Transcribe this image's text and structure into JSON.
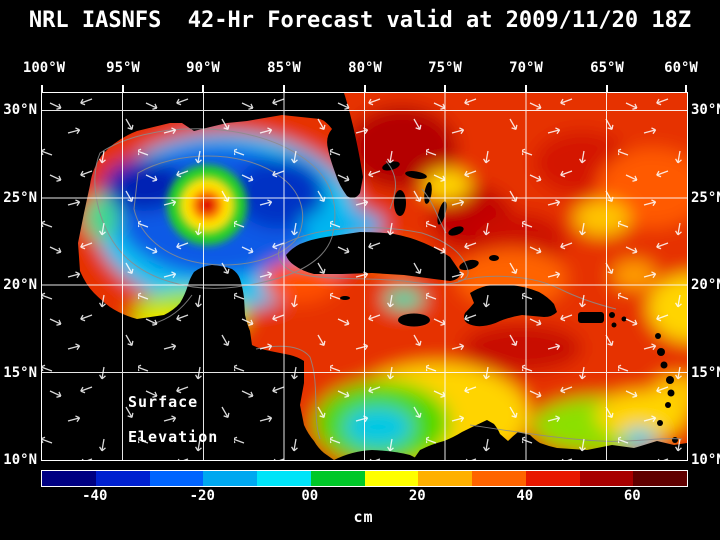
{
  "title": "NRL IASNFS  42-Hr Forecast valid at 2009/11/20 18Z",
  "map": {
    "x_ticks_top": [
      "100°W",
      "95°W",
      "90°W",
      "85°W",
      "80°W",
      "75°W",
      "70°W",
      "65°W",
      "60°W"
    ],
    "y_ticks_left": [
      "30°N",
      "25°N",
      "20°N",
      "15°N",
      "10°N"
    ],
    "y_ticks_right": [
      "30°N",
      "25°N",
      "20°N",
      "15°N",
      "10°N"
    ],
    "overlay_label": {
      "line1": "Surface",
      "line2": "Elevation"
    }
  },
  "colorbar": {
    "unit_label": "cm",
    "tick_labels": [
      "-40",
      "-20",
      "00",
      "20",
      "40",
      "60"
    ],
    "segment_colors": [
      "#000082",
      "#0020d0",
      "#0064ff",
      "#00a8f0",
      "#00e4f8",
      "#00c828",
      "#ffff00",
      "#ffb000",
      "#ff6400",
      "#e81800",
      "#a80000",
      "#600000"
    ]
  },
  "chart_data": {
    "type": "heatmap",
    "title": "NRL IASNFS 42-Hr Forecast valid at 2009/11/20 18Z",
    "model": "NRL IASNFS",
    "forecast_hour": "42-Hr",
    "valid_time": "2009/11/20 18Z",
    "variable": "Surface Elevation",
    "units": "cm",
    "x_axis": {
      "label": "longitude",
      "ticks": [
        "100°W",
        "95°W",
        "90°W",
        "85°W",
        "80°W",
        "75°W",
        "70°W",
        "65°W",
        "60°W"
      ]
    },
    "y_axis": {
      "label": "latitude",
      "ticks": [
        "30°N",
        "25°N",
        "20°N",
        "15°N",
        "10°N"
      ]
    },
    "colorbar": {
      "ticks": [
        -40,
        -20,
        0,
        20,
        40,
        60
      ],
      "range": [
        -50,
        70
      ],
      "units": "cm",
      "position": "bottom"
    },
    "overlays": [
      "white surface-current vector arrows",
      "gray bathymetry contours",
      "5-degree white graticule",
      "black land mask"
    ],
    "regions": [
      {
        "region": "Gulf of Mexico interior (cold/low SSH pool)",
        "approx_elevation_cm": -30
      },
      {
        "region": "Warm-core eddy near 90W 25N (red core, yellow-green ring)",
        "approx_elevation_cm": 35
      },
      {
        "region": "Gulf of Mexico rim / shelf (cyan band)",
        "approx_elevation_cm": -15
      },
      {
        "region": "Straits of Florida (cyan band north of Cuba)",
        "approx_elevation_cm": -10
      },
      {
        "region": "Western Atlantic north of Cuba / Hispaniola (dark red)",
        "approx_elevation_cm": 50
      },
      {
        "region": "Central Caribbean Sea (orange-red)",
        "approx_elevation_cm": 35
      },
      {
        "region": "Bay of Campeche (green-yellow)",
        "approx_elevation_cm": 5
      },
      {
        "region": "Southwest Caribbean cold eddy, Colombia Basin (green with cyan core)",
        "approx_elevation_cm": -5
      },
      {
        "region": "Southern Caribbean coastal band Venezuela/Colombia (yellow-green)",
        "approx_elevation_cm": 15
      },
      {
        "region": "Bahamas / eastern yellow patches",
        "approx_elevation_cm": 20
      }
    ]
  }
}
